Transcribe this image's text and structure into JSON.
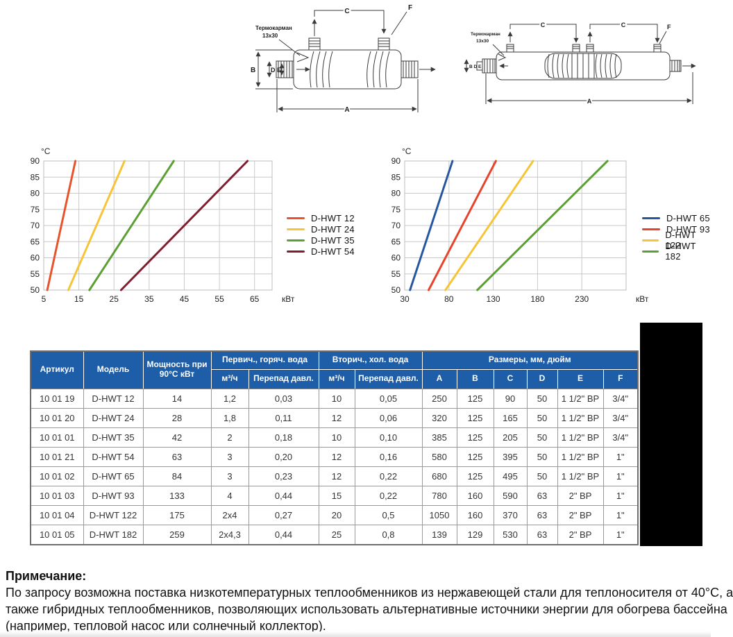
{
  "diagram_labels": {
    "a": "A",
    "b": "B",
    "c": "C",
    "d": "D",
    "e": "E",
    "f": "F",
    "bde": "B D E",
    "thermowell": "Термокарман",
    "thermowell_size": "13x30"
  },
  "chart_data": [
    {
      "type": "line",
      "title": "",
      "y_unit": "°C",
      "x_unit": "кВт",
      "xlim": [
        5,
        70
      ],
      "ylim": [
        50,
        90
      ],
      "x_ticks": [
        5,
        15,
        25,
        35,
        45,
        55,
        65
      ],
      "y_ticks": [
        50,
        55,
        60,
        65,
        70,
        75,
        80,
        85,
        90
      ],
      "grid": true,
      "legend_position": "right",
      "series": [
        {
          "name": "D-HWT 12",
          "color": "#E8532B",
          "points": [
            [
              6,
              50
            ],
            [
              14,
              90
            ]
          ]
        },
        {
          "name": "D-HWT 24",
          "color": "#F7C437",
          "points": [
            [
              12,
              50
            ],
            [
              28,
              90
            ]
          ]
        },
        {
          "name": "D-HWT 35",
          "color": "#5CA033",
          "points": [
            [
              18,
              50
            ],
            [
              42,
              90
            ]
          ]
        },
        {
          "name": "D-HWT 54",
          "color": "#801E30",
          "points": [
            [
              27,
              50
            ],
            [
              63,
              90
            ]
          ]
        }
      ]
    },
    {
      "type": "line",
      "title": "",
      "y_unit": "°C",
      "x_unit": "кВт",
      "xlim": [
        30,
        280
      ],
      "ylim": [
        50,
        90
      ],
      "x_ticks": [
        30,
        80,
        130,
        180,
        230
      ],
      "y_ticks": [
        50,
        55,
        60,
        65,
        70,
        75,
        80,
        85,
        90
      ],
      "grid": true,
      "legend_position": "right",
      "series": [
        {
          "name": "D-HWT 65",
          "color": "#2457A0",
          "points": [
            [
              36,
              50
            ],
            [
              84,
              90
            ]
          ]
        },
        {
          "name": "D-HWT 93",
          "color": "#E8432C",
          "points": [
            [
              57,
              50
            ],
            [
              133,
              90
            ]
          ]
        },
        {
          "name": "D-HWT 122",
          "color": "#F7C437",
          "points": [
            [
              76,
              50
            ],
            [
              175,
              90
            ]
          ]
        },
        {
          "name": "D-HWT 182",
          "color": "#5CA033",
          "points": [
            [
              112,
              50
            ],
            [
              259,
              90
            ]
          ]
        }
      ]
    }
  ],
  "table": {
    "header": {
      "artikul": "Артикул",
      "model": "Модель",
      "power": "Мощность при 90°С кВт",
      "primary": "Первич., горяч. вода",
      "secondary": "Вторич., хол. вода",
      "dims": "Размеры, мм, дюйм",
      "flow": "м³/ч",
      "pressure": "Перепад давл.",
      "dim_cols": [
        "A",
        "B",
        "C",
        "D",
        "E",
        "F"
      ]
    },
    "rows": [
      [
        "10 01 19",
        "D-HWT 12",
        "14",
        "1,2",
        "0,03",
        "10",
        "0,05",
        "250",
        "125",
        "90",
        "50",
        "1 1/2\" ВР",
        "3/4\""
      ],
      [
        "10 01 20",
        "D-HWT 24",
        "28",
        "1,8",
        "0,11",
        "12",
        "0,06",
        "320",
        "125",
        "165",
        "50",
        "1 1/2\" ВР",
        "3/4\""
      ],
      [
        "10 01 01",
        "D-HWT 35",
        "42",
        "2",
        "0,18",
        "10",
        "0,10",
        "385",
        "125",
        "205",
        "50",
        "1 1/2\" ВР",
        "3/4\""
      ],
      [
        "10 01 21",
        "D-HWT 54",
        "63",
        "3",
        "0,20",
        "12",
        "0,16",
        "580",
        "125",
        "395",
        "50",
        "1 1/2\" ВР",
        "1\""
      ],
      [
        "10 01 02",
        "D-HWT 65",
        "84",
        "3",
        "0,23",
        "12",
        "0,22",
        "680",
        "125",
        "495",
        "50",
        "1 1/2\" ВР",
        "1\""
      ],
      [
        "10 01 03",
        "D-HWT 93",
        "133",
        "4",
        "0,44",
        "15",
        "0,22",
        "780",
        "160",
        "590",
        "63",
        "2\" ВР",
        "1\""
      ],
      [
        "10 01 04",
        "D-HWT 122",
        "175",
        "2x4",
        "0,27",
        "20",
        "0,5",
        "1050",
        "160",
        "370",
        "63",
        "2\" ВР",
        "1\""
      ],
      [
        "10 01 05",
        "D-HWT 182",
        "259",
        "2x4,3",
        "0,44",
        "25",
        "0,8",
        "139",
        "129",
        "530",
        "63",
        "2\" ВР",
        "1\""
      ]
    ]
  },
  "note": {
    "title": "Примечание:",
    "lines": [
      "По запросу возможна поставка низкотемпературных теплообменников из нержавеющей стали для теплоносителя от 40°С, а",
      "также гибридных теплообменников, позволяющих использовать альтернативные источники энергии для обогрева бассейна",
      "(например, тепловой насос или солнечный коллектор)."
    ]
  }
}
